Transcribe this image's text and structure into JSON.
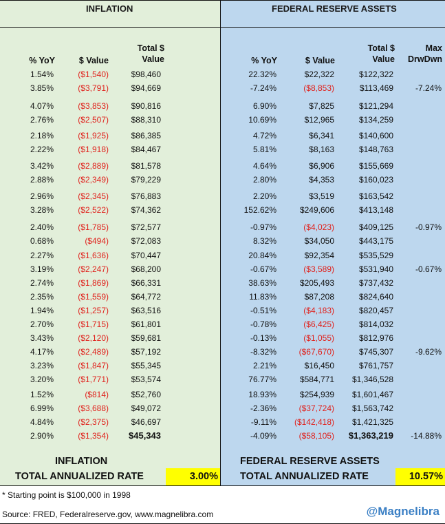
{
  "left": {
    "title": "INFLATION",
    "headers": {
      "yoy": "% YoY",
      "value": "$ Value",
      "total_l1": "Total $",
      "total_l2": "Value"
    },
    "rows": [
      [
        "1.54%",
        "($1,540)",
        "$98,460"
      ],
      [
        "3.85%",
        "($3,791)",
        "$94,669"
      ],
      [
        "4.07%",
        "($3,853)",
        "$90,816"
      ],
      [
        "2.76%",
        "($2,507)",
        "$88,310"
      ],
      [
        "2.18%",
        "($1,925)",
        "$86,385"
      ],
      [
        "2.22%",
        "($1,918)",
        "$84,467"
      ],
      [
        "3.42%",
        "($2,889)",
        "$81,578"
      ],
      [
        "2.88%",
        "($2,349)",
        "$79,229"
      ],
      [
        "2.96%",
        "($2,345)",
        "$76,883"
      ],
      [
        "3.28%",
        "($2,522)",
        "$74,362"
      ],
      [
        "2.40%",
        "($1,785)",
        "$72,577"
      ],
      [
        "0.68%",
        "($494)",
        "$72,083"
      ],
      [
        "2.27%",
        "($1,636)",
        "$70,447"
      ],
      [
        "3.19%",
        "($2,247)",
        "$68,200"
      ],
      [
        "2.74%",
        "($1,869)",
        "$66,331"
      ],
      [
        "2.35%",
        "($1,559)",
        "$64,772"
      ],
      [
        "1.94%",
        "($1,257)",
        "$63,516"
      ],
      [
        "2.70%",
        "($1,715)",
        "$61,801"
      ],
      [
        "3.43%",
        "($2,120)",
        "$59,681"
      ],
      [
        "4.17%",
        "($2,489)",
        "$57,192"
      ],
      [
        "3.23%",
        "($1,847)",
        "$55,345"
      ],
      [
        "3.20%",
        "($1,771)",
        "$53,574"
      ],
      [
        "1.52%",
        "($814)",
        "$52,760"
      ],
      [
        "6.99%",
        "($3,688)",
        "$49,072"
      ],
      [
        "4.84%",
        "($2,375)",
        "$46,697"
      ],
      [
        "2.90%",
        "($1,354)",
        "$45,343"
      ]
    ],
    "summary_title": "INFLATION",
    "summary_label": "TOTAL ANNUALIZED RATE",
    "rate": "3.00%"
  },
  "right": {
    "title": "FEDERAL RESERVE ASSETS",
    "headers": {
      "yoy": "% YoY",
      "value": "$ Value",
      "total_l1": "Total $",
      "total_l2": "Value",
      "dd_l1": "Max",
      "dd_l2": "DrwDwn"
    },
    "rows": [
      [
        "22.32%",
        "$22,322",
        "$122,322",
        ""
      ],
      [
        "-7.24%",
        "($8,853)",
        "$113,469",
        "-7.24%"
      ],
      [
        "6.90%",
        "$7,825",
        "$121,294",
        ""
      ],
      [
        "10.69%",
        "$12,965",
        "$134,259",
        ""
      ],
      [
        "4.72%",
        "$6,341",
        "$140,600",
        ""
      ],
      [
        "5.81%",
        "$8,163",
        "$148,763",
        ""
      ],
      [
        "4.64%",
        "$6,906",
        "$155,669",
        ""
      ],
      [
        "2.80%",
        "$4,353",
        "$160,023",
        ""
      ],
      [
        "2.20%",
        "$3,519",
        "$163,542",
        ""
      ],
      [
        "152.62%",
        "$249,606",
        "$413,148",
        ""
      ],
      [
        "-0.97%",
        "($4,023)",
        "$409,125",
        "-0.97%"
      ],
      [
        "8.32%",
        "$34,050",
        "$443,175",
        ""
      ],
      [
        "20.84%",
        "$92,354",
        "$535,529",
        ""
      ],
      [
        "-0.67%",
        "($3,589)",
        "$531,940",
        "-0.67%"
      ],
      [
        "38.63%",
        "$205,493",
        "$737,432",
        ""
      ],
      [
        "11.83%",
        "$87,208",
        "$824,640",
        ""
      ],
      [
        "-0.51%",
        "($4,183)",
        "$820,457",
        ""
      ],
      [
        "-0.78%",
        "($6,425)",
        "$814,032",
        ""
      ],
      [
        "-0.13%",
        "($1,055)",
        "$812,976",
        ""
      ],
      [
        "-8.32%",
        "($67,670)",
        "$745,307",
        "-9.62%"
      ],
      [
        "2.21%",
        "$16,450",
        "$761,757",
        ""
      ],
      [
        "76.77%",
        "$584,771",
        "$1,346,528",
        ""
      ],
      [
        "18.93%",
        "$254,939",
        "$1,601,467",
        ""
      ],
      [
        "-2.36%",
        "($37,724)",
        "$1,563,742",
        ""
      ],
      [
        "-9.11%",
        "($142,418)",
        "$1,421,325",
        ""
      ],
      [
        "-4.09%",
        "($58,105)",
        "$1,363,219",
        "-14.88%"
      ]
    ],
    "summary_title": "FEDERAL RESERVE ASSETS",
    "summary_label": "TOTAL ANNUALIZED RATE",
    "rate": "10.57%"
  },
  "footnote": "* Starting point is $100,000 in 1998",
  "source": "Source: FRED, Federalreserve.gov, www.magnelibra.com",
  "brand": "@Magnelibra",
  "colors": {
    "left_bg": "#e2efda",
    "right_bg": "#bdd7ee",
    "negative": "#e0211c",
    "highlight": "#ffff00",
    "brand": "#3a7fc4"
  }
}
